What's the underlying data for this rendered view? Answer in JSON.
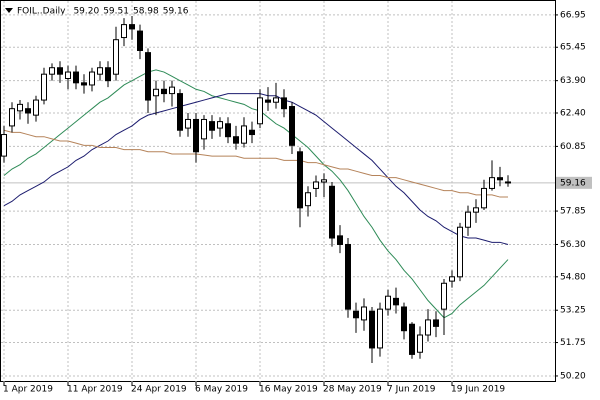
{
  "chart_data": {
    "type": "candlestick",
    "title": "FOIL..Daily",
    "quote": [
      {
        "value": 59.2,
        "label": "59.20"
      },
      59.51,
      58.98,
      59.16
    ],
    "last_price": 59.16,
    "categories": [
      "1 Apr 2019",
      null,
      null,
      null,
      null,
      null,
      null,
      null,
      "11 Apr 2019",
      null,
      null,
      null,
      null,
      null,
      null,
      null,
      "24 Apr 2019",
      null,
      null,
      null,
      null,
      null,
      null,
      null,
      "6 May 2019",
      null,
      null,
      null,
      null,
      null,
      null,
      null,
      "16 May 2019",
      null,
      null,
      null,
      null,
      null,
      null,
      null,
      "28 May 2019",
      null,
      null,
      null,
      null,
      null,
      null,
      null,
      "7 Jun 2019",
      null,
      null,
      null,
      null,
      null,
      null,
      null,
      "19 Jun 2019",
      null,
      null,
      null,
      null,
      null,
      null,
      null
    ],
    "open": [
      60.4,
      61.8,
      62.5,
      62.6,
      62.3,
      63.0,
      64.2,
      64.5,
      64.0,
      64.3,
      63.8,
      63.7,
      64.2,
      64.5,
      64.2,
      65.9,
      66.5,
      66.2,
      65.2,
      63.2,
      63.5,
      63.3,
      63.3,
      61.7,
      62.1,
      61.2,
      62.0,
      61.7,
      61.9,
      61.3,
      61.0,
      61.6,
      61.9,
      63.0,
      62.9,
      63.1,
      62.7,
      60.6,
      58.1,
      58.9,
      59.2,
      59.0,
      56.7,
      56.3,
      53.2,
      52.8,
      53.2,
      51.5,
      53.3,
      53.8,
      53.4,
      52.6,
      51.3,
      52.1,
      52.8,
      53.3,
      54.6,
      54.8,
      57.1,
      57.8,
      58.0,
      58.9,
      59.4,
      59.2
    ],
    "high": [
      61.8,
      62.9,
      63.0,
      62.9,
      63.2,
      64.5,
      64.7,
      64.8,
      64.6,
      64.6,
      64.2,
      64.5,
      64.8,
      64.8,
      66.4,
      66.8,
      66.9,
      66.5,
      65.4,
      63.9,
      63.9,
      63.9,
      63.5,
      62.4,
      62.4,
      62.3,
      62.3,
      62.2,
      62.2,
      61.8,
      62.2,
      62.0,
      63.5,
      63.6,
      63.8,
      63.5,
      62.9,
      60.8,
      59.0,
      59.5,
      59.6,
      59.2,
      57.2,
      56.6,
      53.6,
      53.8,
      53.4,
      53.6,
      54.2,
      54.3,
      53.6,
      52.7,
      52.5,
      53.3,
      53.2,
      54.7,
      55.1,
      57.3,
      58.1,
      58.4,
      59.3,
      60.2,
      59.9,
      59.51
    ],
    "low": [
      60.1,
      61.5,
      62.1,
      61.9,
      62.0,
      62.8,
      63.9,
      63.8,
      63.5,
      63.5,
      63.3,
      63.4,
      63.9,
      63.6,
      63.9,
      65.5,
      65.8,
      64.9,
      62.4,
      62.3,
      62.9,
      62.7,
      61.3,
      61.3,
      60.1,
      60.7,
      61.2,
      61.3,
      61.0,
      60.7,
      60.8,
      61.0,
      61.7,
      62.5,
      62.6,
      62.2,
      60.5,
      57.1,
      57.6,
      58.5,
      58.5,
      56.2,
      55.9,
      52.9,
      52.2,
      52.3,
      50.8,
      51.1,
      53.0,
      53.1,
      51.9,
      51.0,
      51.0,
      51.8,
      52.0,
      52.1,
      54.3,
      54.6,
      56.7,
      57.3,
      57.9,
      58.8,
      59.0,
      58.98
    ],
    "close": [
      61.4,
      62.6,
      62.8,
      62.4,
      63.0,
      64.2,
      64.5,
      64.2,
      64.3,
      63.8,
      63.7,
      64.3,
      64.5,
      63.9,
      65.8,
      66.5,
      66.3,
      65.3,
      63.0,
      63.5,
      63.3,
      63.6,
      61.6,
      62.1,
      60.6,
      62.1,
      61.6,
      62.0,
      61.3,
      61.0,
      61.8,
      61.4,
      63.1,
      62.9,
      63.1,
      62.6,
      60.9,
      58.0,
      58.7,
      59.2,
      59.3,
      56.6,
      56.3,
      53.3,
      52.9,
      53.4,
      51.5,
      53.3,
      53.9,
      53.5,
      52.3,
      51.2,
      52.1,
      52.8,
      52.5,
      54.5,
      54.8,
      57.1,
      57.8,
      58.0,
      58.9,
      59.4,
      59.3,
      59.16
    ],
    "moving_averages": [
      {
        "color": "#2e8b57",
        "values": [
          59.5,
          59.8,
          60.0,
          60.3,
          60.5,
          60.8,
          61.1,
          61.4,
          61.7,
          62.0,
          62.3,
          62.6,
          62.9,
          63.1,
          63.4,
          63.7,
          63.9,
          64.1,
          64.3,
          64.4,
          64.3,
          64.1,
          63.9,
          63.7,
          63.5,
          63.4,
          63.2,
          63.1,
          63.0,
          62.9,
          62.8,
          62.6,
          62.5,
          62.2,
          61.9,
          61.7,
          61.4,
          61.1,
          60.8,
          60.4,
          60.0,
          59.7,
          59.3,
          58.8,
          58.2,
          57.6,
          57.1,
          56.5,
          56.0,
          55.6,
          55.1,
          54.7,
          54.2,
          53.7,
          53.3,
          52.9,
          53.1,
          53.5,
          53.8,
          54.1,
          54.4,
          54.8,
          55.2,
          55.6
        ]
      },
      {
        "color": "#1c1c6e",
        "values": [
          58.1,
          58.3,
          58.6,
          58.8,
          59.0,
          59.2,
          59.5,
          59.7,
          59.9,
          60.2,
          60.4,
          60.7,
          60.9,
          61.1,
          61.4,
          61.6,
          61.8,
          62.1,
          62.3,
          62.4,
          62.5,
          62.6,
          62.7,
          62.8,
          62.9,
          63.0,
          63.1,
          63.2,
          63.3,
          63.3,
          63.3,
          63.3,
          63.3,
          63.2,
          63.2,
          63.0,
          62.9,
          62.7,
          62.5,
          62.3,
          62.0,
          61.7,
          61.4,
          61.1,
          60.8,
          60.5,
          60.2,
          59.8,
          59.4,
          59.0,
          58.7,
          58.3,
          57.9,
          57.6,
          57.4,
          57.1,
          56.9,
          56.7,
          56.6,
          56.6,
          56.5,
          56.4,
          56.4,
          56.3
        ]
      },
      {
        "color": "#b5835a",
        "values": [
          61.6,
          61.5,
          61.5,
          61.4,
          61.3,
          61.3,
          61.2,
          61.1,
          61.1,
          61.0,
          60.9,
          60.9,
          60.8,
          60.8,
          60.8,
          60.7,
          60.7,
          60.7,
          60.6,
          60.6,
          60.6,
          60.5,
          60.5,
          60.5,
          60.5,
          60.45,
          60.4,
          60.4,
          60.4,
          60.4,
          60.3,
          60.3,
          60.3,
          60.3,
          60.3,
          60.2,
          60.2,
          60.2,
          60.1,
          60.1,
          60.0,
          59.9,
          59.8,
          59.8,
          59.7,
          59.6,
          59.5,
          59.5,
          59.4,
          59.4,
          59.3,
          59.2,
          59.1,
          59.0,
          58.9,
          58.8,
          58.8,
          58.7,
          58.7,
          58.6,
          58.6,
          58.6,
          58.5,
          58.5
        ]
      }
    ],
    "bull_color": "#ffffff",
    "bear_color": "#000000",
    "outline_color": "#000000",
    "ylim": [
      49.92,
      67.41
    ],
    "yticks": [
      66.95,
      65.45,
      {
        "value": 63.9,
        "label": "63.90"
      },
      {
        "value": 62.4,
        "label": "62.40"
      },
      60.85,
      57.85,
      {
        "value": 56.3,
        "label": "56.30"
      },
      {
        "value": 54.8,
        "label": "54.80"
      },
      53.25,
      51.75,
      {
        "value": 50.2,
        "label": "50.20"
      }
    ],
    "grid": true
  }
}
